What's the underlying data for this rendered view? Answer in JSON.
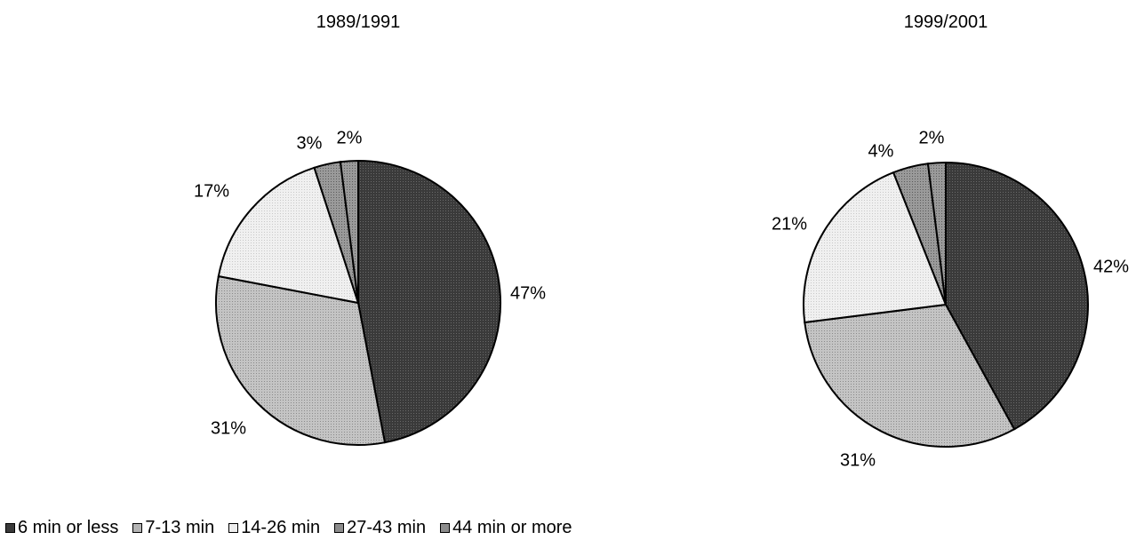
{
  "chart_data": [
    {
      "type": "pie",
      "title": "1989/1991",
      "categories": [
        "6 min or less",
        "7-13 min",
        "14-26 min",
        "27-43 min",
        "44 min or more"
      ],
      "values": [
        47,
        31,
        17,
        3,
        2
      ],
      "labels": [
        "47%",
        "31%",
        "17%",
        "3%",
        "2%"
      ],
      "start": "12 o'clock, clockwise"
    },
    {
      "type": "pie",
      "title": "1999/2001",
      "categories": [
        "6 min or less",
        "7-13 min",
        "14-26 min",
        "27-43 min",
        "44 min or more"
      ],
      "values": [
        42,
        31,
        21,
        4,
        2
      ],
      "labels": [
        "42%",
        "31%",
        "21%",
        "4%",
        "2%"
      ],
      "start": "12 o'clock, clockwise"
    }
  ],
  "legend": {
    "placement": "bottom-left",
    "items": [
      "6 min or less",
      "7-13 min",
      "14-26 min",
      "27-43 min",
      "44 min or more"
    ]
  },
  "colors": {
    "6 min or less": "#404040",
    "7-13 min": "#b4b4b4",
    "14-26 min": "#ededed",
    "27-43 min": "#8c8c8c",
    "44 min or more": "#8c8c8c"
  }
}
